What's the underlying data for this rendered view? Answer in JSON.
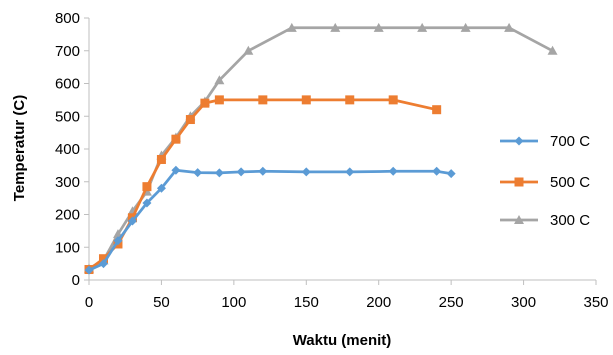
{
  "chart_data": {
    "type": "line",
    "xlabel": "Waktu (menit)",
    "ylabel": "Temperatur (C)",
    "xlim": [
      0,
      350
    ],
    "ylim": [
      0,
      800
    ],
    "x_ticks": [
      0,
      50,
      100,
      150,
      200,
      250,
      300,
      350
    ],
    "y_ticks": [
      0,
      100,
      200,
      300,
      400,
      500,
      600,
      700,
      800
    ],
    "grid": false,
    "legend_position": "right",
    "series": [
      {
        "name": "700 C",
        "color": "#5B9BD5",
        "marker": "diamond",
        "points": [
          [
            0,
            30
          ],
          [
            10,
            50
          ],
          [
            20,
            120
          ],
          [
            30,
            180
          ],
          [
            40,
            235
          ],
          [
            50,
            280
          ],
          [
            60,
            335
          ],
          [
            75,
            328
          ],
          [
            90,
            327
          ],
          [
            105,
            330
          ],
          [
            120,
            332
          ],
          [
            150,
            330
          ],
          [
            180,
            330
          ],
          [
            210,
            332
          ],
          [
            240,
            332
          ],
          [
            250,
            325
          ]
        ]
      },
      {
        "name": "500 C",
        "color": "#ED7D31",
        "marker": "square",
        "points": [
          [
            0,
            32
          ],
          [
            10,
            65
          ],
          [
            20,
            110
          ],
          [
            30,
            190
          ],
          [
            40,
            285
          ],
          [
            50,
            368
          ],
          [
            60,
            430
          ],
          [
            70,
            490
          ],
          [
            80,
            540
          ],
          [
            90,
            550
          ],
          [
            120,
            550
          ],
          [
            150,
            550
          ],
          [
            180,
            550
          ],
          [
            210,
            550
          ],
          [
            240,
            520
          ]
        ]
      },
      {
        "name": "300 C",
        "color": "#A5A5A5",
        "marker": "triangle",
        "points": [
          [
            0,
            35
          ],
          [
            10,
            60
          ],
          [
            20,
            140
          ],
          [
            30,
            210
          ],
          [
            40,
            270
          ],
          [
            50,
            380
          ],
          [
            60,
            435
          ],
          [
            70,
            500
          ],
          [
            80,
            545
          ],
          [
            90,
            610
          ],
          [
            110,
            700
          ],
          [
            140,
            770
          ],
          [
            170,
            770
          ],
          [
            200,
            770
          ],
          [
            230,
            770
          ],
          [
            260,
            770
          ],
          [
            290,
            770
          ],
          [
            320,
            700
          ]
        ]
      }
    ]
  }
}
